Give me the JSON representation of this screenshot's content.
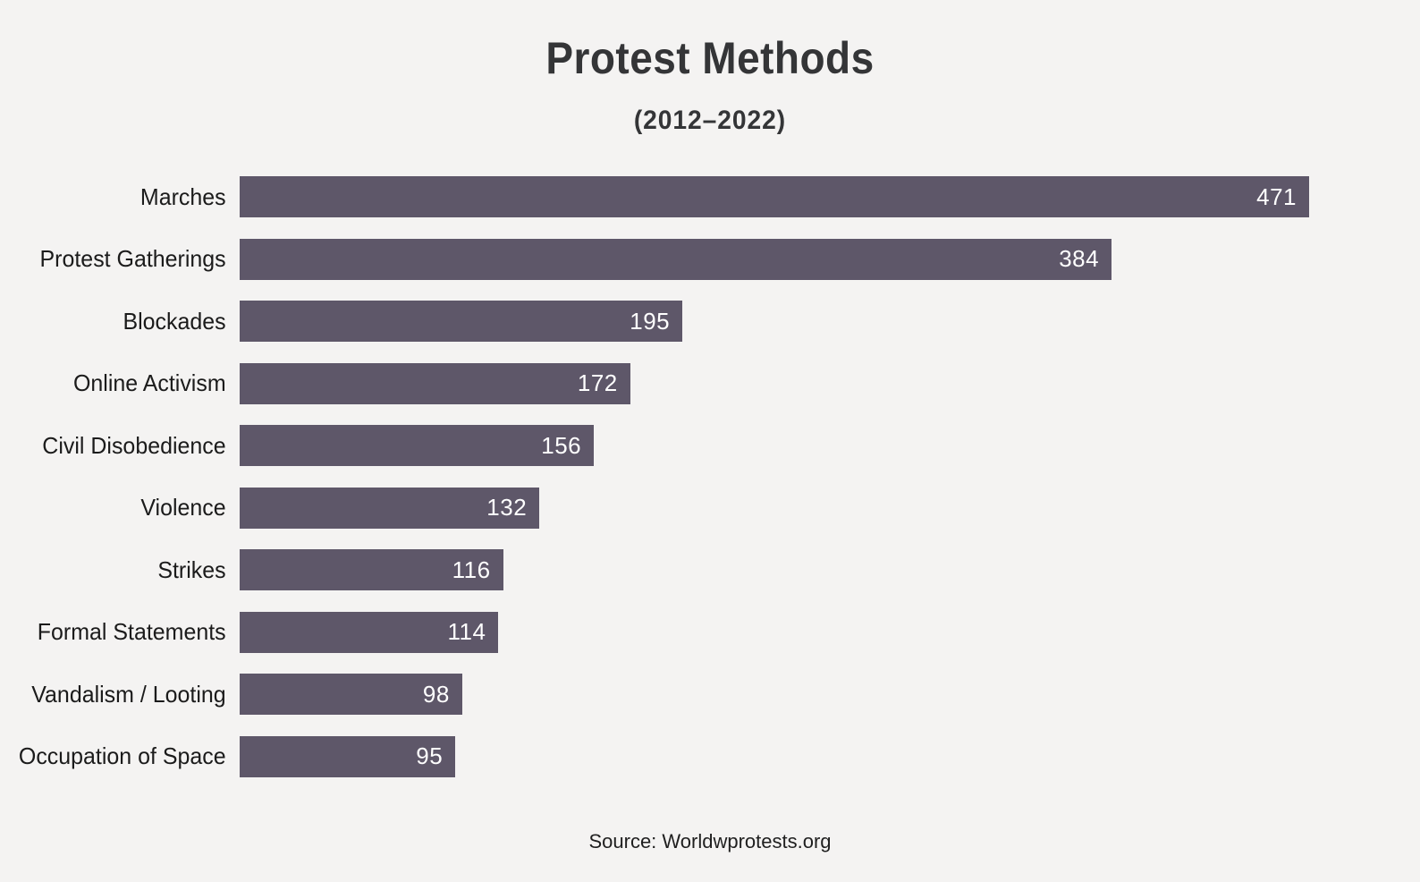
{
  "page": {
    "background_color": "#f4f3f2",
    "bar_color": "#5e5769",
    "title_color": "#343537",
    "label_color": "#1b1b1b",
    "value_label_color": "#ffffff"
  },
  "header": {
    "title": "Protest Methods",
    "subtitle": "(2012–2022)"
  },
  "chart_data": {
    "type": "bar",
    "orientation": "horizontal",
    "title": "Protest Methods",
    "subtitle": "(2012–2022)",
    "categories": [
      "Marches",
      "Protest Gatherings",
      "Blockades",
      "Online Activism",
      "Civil Disobedience",
      "Violence",
      "Strikes",
      "Formal Statements",
      "Vandalism / Looting",
      "Occupation of Space"
    ],
    "values": [
      471,
      384,
      195,
      172,
      156,
      132,
      116,
      114,
      98,
      95
    ],
    "xlabel": "",
    "ylabel": "",
    "xlim": [
      0,
      471
    ],
    "grid": false,
    "legend": false,
    "value_labels": "inside-end",
    "bar_color": "#5e5769"
  },
  "footer": {
    "source": "Source: Worldwprotests.org"
  }
}
